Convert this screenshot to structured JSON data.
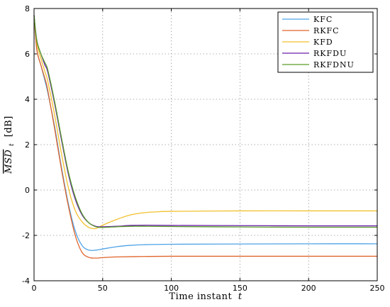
{
  "chart_data": {
    "type": "line",
    "xlabel": "Time instant",
    "xlabel_var": "t",
    "ylabel": "MSD",
    "ylabel_sub": "t",
    "ylabel_unit": "[dB]",
    "xlim": [
      0,
      250
    ],
    "ylim": [
      -4,
      8
    ],
    "xticks": [
      0,
      50,
      100,
      150,
      200,
      250
    ],
    "yticks": [
      -4,
      -2,
      0,
      2,
      4,
      6,
      8
    ],
    "grid": true,
    "legend_position": "top-right",
    "series": [
      {
        "name": "KFC",
        "color": "#4DA3E8",
        "points": [
          [
            0,
            7.7
          ],
          [
            2,
            6.2
          ],
          [
            5,
            5.5
          ],
          [
            8,
            4.8
          ],
          [
            10,
            4.3
          ],
          [
            15,
            2.8
          ],
          [
            20,
            1.0
          ],
          [
            25,
            -0.6
          ],
          [
            30,
            -1.8
          ],
          [
            35,
            -2.45
          ],
          [
            40,
            -2.65
          ],
          [
            45,
            -2.65
          ],
          [
            50,
            -2.6
          ],
          [
            60,
            -2.5
          ],
          [
            70,
            -2.44
          ],
          [
            80,
            -2.41
          ],
          [
            100,
            -2.39
          ],
          [
            150,
            -2.38
          ],
          [
            200,
            -2.37
          ],
          [
            250,
            -2.37
          ]
        ]
      },
      {
        "name": "RKFC",
        "color": "#E0642A",
        "points": [
          [
            0,
            7.7
          ],
          [
            2,
            6.2
          ],
          [
            5,
            5.5
          ],
          [
            8,
            4.9
          ],
          [
            10,
            4.4
          ],
          [
            15,
            2.7
          ],
          [
            20,
            0.9
          ],
          [
            25,
            -0.7
          ],
          [
            30,
            -2.0
          ],
          [
            35,
            -2.75
          ],
          [
            40,
            -2.97
          ],
          [
            45,
            -3.0
          ],
          [
            50,
            -2.98
          ],
          [
            60,
            -2.95
          ],
          [
            80,
            -2.93
          ],
          [
            100,
            -2.92
          ],
          [
            150,
            -2.92
          ],
          [
            200,
            -2.92
          ],
          [
            250,
            -2.92
          ]
        ]
      },
      {
        "name": "KFD",
        "color": "#F2C12E",
        "points": [
          [
            0,
            7.7
          ],
          [
            2,
            6.5
          ],
          [
            5,
            5.8
          ],
          [
            8,
            5.2
          ],
          [
            10,
            4.8
          ],
          [
            15,
            3.3
          ],
          [
            20,
            1.6
          ],
          [
            25,
            0.1
          ],
          [
            30,
            -0.9
          ],
          [
            35,
            -1.4
          ],
          [
            40,
            -1.65
          ],
          [
            45,
            -1.7
          ],
          [
            50,
            -1.55
          ],
          [
            60,
            -1.3
          ],
          [
            70,
            -1.1
          ],
          [
            80,
            -1.0
          ],
          [
            90,
            -0.96
          ],
          [
            100,
            -0.94
          ],
          [
            150,
            -0.92
          ],
          [
            200,
            -0.92
          ],
          [
            250,
            -0.92
          ]
        ]
      },
      {
        "name": "RKFDU",
        "color": "#6A1FA8",
        "points": [
          [
            0,
            7.7
          ],
          [
            2,
            6.6
          ],
          [
            5,
            6.0
          ],
          [
            8,
            5.5
          ],
          [
            10,
            5.2
          ],
          [
            15,
            3.8
          ],
          [
            20,
            2.2
          ],
          [
            25,
            0.7
          ],
          [
            30,
            -0.4
          ],
          [
            35,
            -1.1
          ],
          [
            40,
            -1.45
          ],
          [
            45,
            -1.6
          ],
          [
            50,
            -1.62
          ],
          [
            60,
            -1.6
          ],
          [
            70,
            -1.56
          ],
          [
            80,
            -1.55
          ],
          [
            100,
            -1.56
          ],
          [
            150,
            -1.57
          ],
          [
            200,
            -1.58
          ],
          [
            250,
            -1.58
          ]
        ]
      },
      {
        "name": "RKFDNU",
        "color": "#5A9E2A",
        "points": [
          [
            0,
            7.7
          ],
          [
            2,
            6.6
          ],
          [
            5,
            6.0
          ],
          [
            8,
            5.6
          ],
          [
            10,
            5.3
          ],
          [
            15,
            3.9
          ],
          [
            20,
            2.3
          ],
          [
            25,
            0.8
          ],
          [
            30,
            -0.3
          ],
          [
            35,
            -1.05
          ],
          [
            40,
            -1.45
          ],
          [
            45,
            -1.62
          ],
          [
            50,
            -1.65
          ],
          [
            60,
            -1.62
          ],
          [
            70,
            -1.6
          ],
          [
            80,
            -1.6
          ],
          [
            100,
            -1.61
          ],
          [
            150,
            -1.63
          ],
          [
            200,
            -1.64
          ],
          [
            250,
            -1.64
          ]
        ]
      }
    ]
  }
}
